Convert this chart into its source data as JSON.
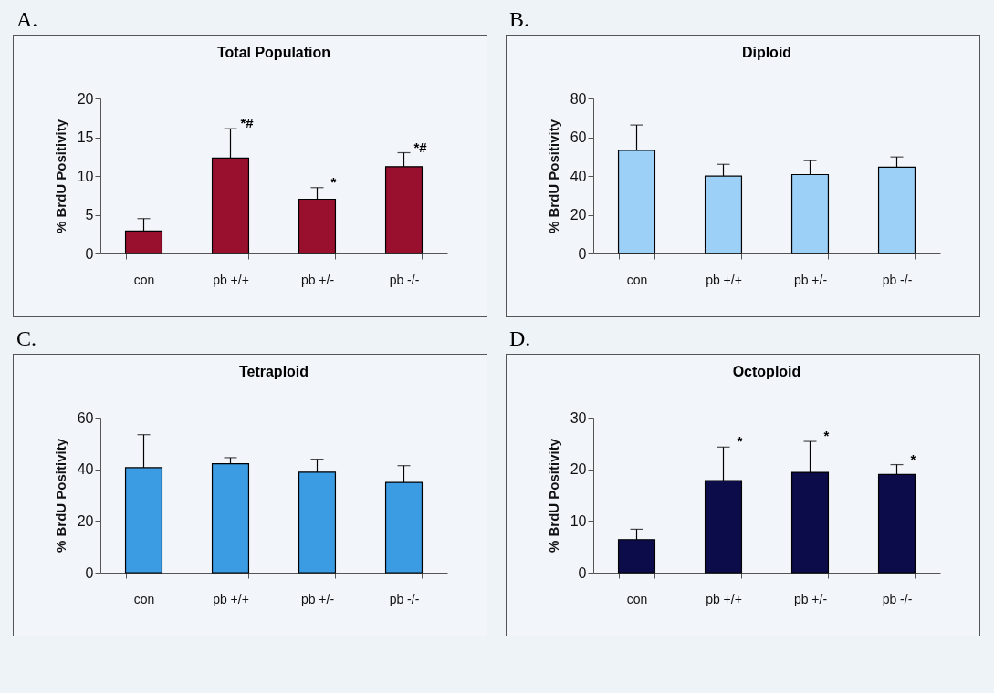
{
  "chart_data": [
    {
      "type": "bar",
      "title": "Total Population",
      "ylabel": "% BrdU Positivity",
      "categories": [
        "con",
        "pb +/+",
        "pb +/-",
        "pb -/-"
      ],
      "values": [
        2.9,
        12.3,
        7.0,
        11.2
      ],
      "errors": [
        [
          2.9,
          4.5
        ],
        [
          12.3,
          16.1
        ],
        [
          7.0,
          8.5
        ],
        [
          11.2,
          13.0
        ]
      ],
      "color": "#99102e",
      "ylim": [
        0,
        20
      ],
      "yticks": [
        0,
        5,
        10,
        15,
        20
      ],
      "annotations": [
        "A.",
        {
          "text": "*#",
          "x": "pb +/+",
          "y": 16.1
        },
        {
          "text": "*",
          "x": "pb +/-",
          "y": 8.5
        },
        {
          "text": "*#",
          "x": "pb -/-",
          "y": 13.0
        }
      ]
    },
    {
      "type": "bar",
      "title": "Diploid",
      "ylabel": "% BrdU Positivity",
      "categories": [
        "con",
        "pb +/+",
        "pb +/-",
        "pb -/-"
      ],
      "values": [
        53.2,
        39.9,
        40.7,
        44.5
      ],
      "errors": [
        [
          53.2,
          66.3
        ],
        [
          39.9,
          46.0
        ],
        [
          40.7,
          47.9
        ],
        [
          44.5,
          49.8
        ]
      ],
      "color": "#9dd0f7",
      "ylim": [
        0,
        80
      ],
      "yticks": [
        0,
        20,
        40,
        60,
        80
      ],
      "annotations": [
        "B."
      ]
    },
    {
      "type": "bar",
      "title": "Tetraploid",
      "ylabel": "% BrdU Positivity",
      "categories": [
        "con",
        "pb +/+",
        "pb +/-",
        "pb -/-"
      ],
      "values": [
        40.6,
        42.1,
        38.9,
        34.9
      ],
      "errors": [
        [
          40.6,
          53.4
        ],
        [
          42.1,
          44.5
        ],
        [
          38.9,
          43.9
        ],
        [
          34.9,
          41.4
        ]
      ],
      "color": "#3b9be3",
      "ylim": [
        0,
        60
      ],
      "yticks": [
        0,
        20,
        40,
        60
      ],
      "annotations": [
        "C."
      ]
    },
    {
      "type": "bar",
      "title": "Octoploid",
      "ylabel": "% BrdU Positivity",
      "categories": [
        "con",
        "pb +/+",
        "pb +/-",
        "pb -/-"
      ],
      "values": [
        6.4,
        17.8,
        19.4,
        19.0
      ],
      "errors": [
        [
          6.4,
          8.4
        ],
        [
          17.8,
          24.3
        ],
        [
          19.4,
          25.4
        ],
        [
          19.0,
          20.9
        ]
      ],
      "color": "#0c0c4a",
      "ylim": [
        0,
        30
      ],
      "yticks": [
        0,
        10,
        20,
        30
      ],
      "annotations": [
        "D.",
        {
          "text": "*",
          "x": "pb +/+",
          "y": 24.3
        },
        {
          "text": "*",
          "x": "pb +/-",
          "y": 25.4
        },
        {
          "text": "*",
          "x": "pb -/-",
          "y": 20.9
        }
      ]
    }
  ]
}
